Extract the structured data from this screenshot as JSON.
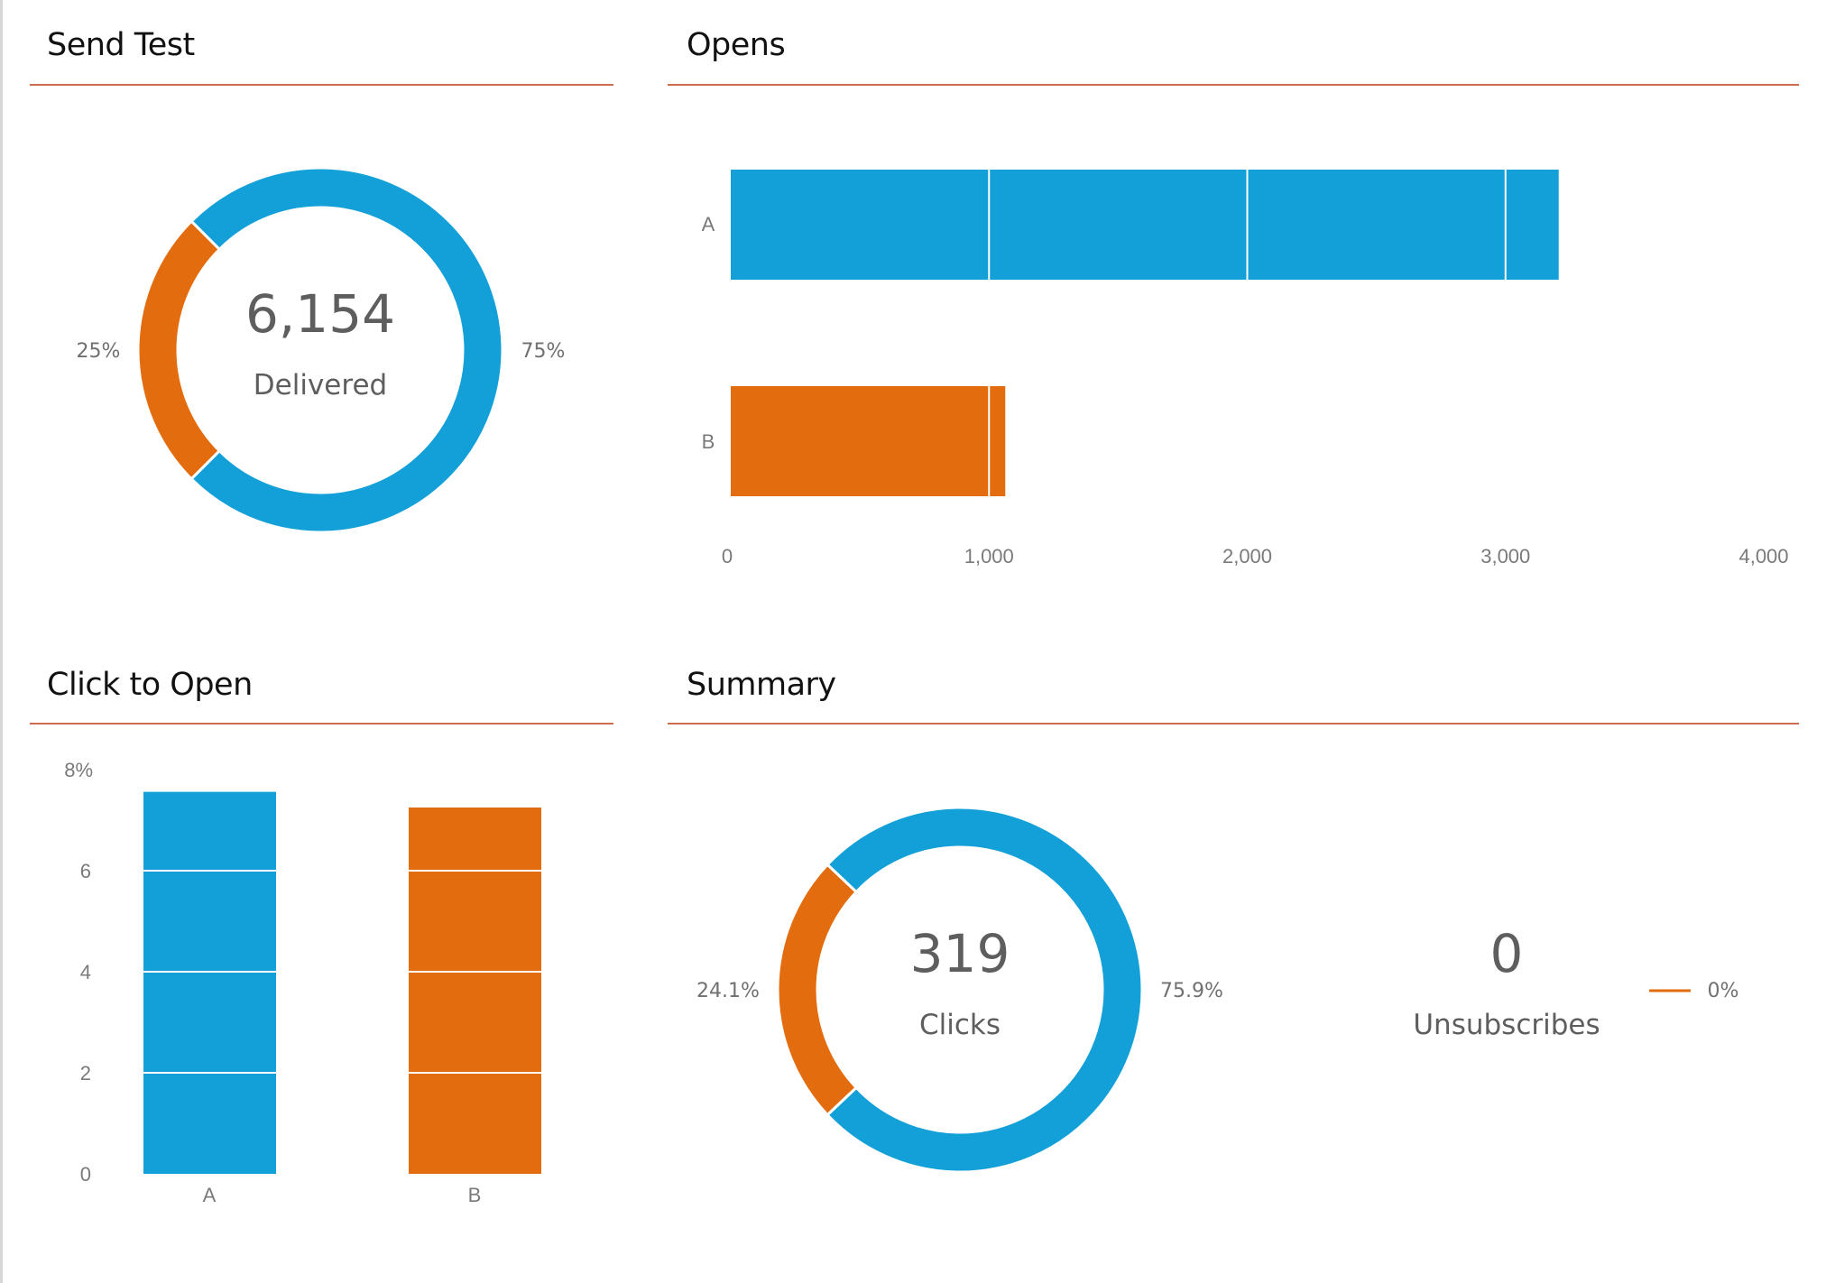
{
  "colors": {
    "series_a": "#139fd8",
    "series_b": "#e36c0e",
    "rule": "#cc6e4a",
    "text": "#5e5e5e",
    "tick": "#7a7a7a"
  },
  "panels": {
    "send_test": {
      "title": "Send Test"
    },
    "opens": {
      "title": "Opens"
    },
    "click_to_open": {
      "title": "Click to Open"
    },
    "summary": {
      "title": "Summary"
    }
  },
  "chart_data": [
    {
      "id": "send_test",
      "type": "pie",
      "title": "Send Test",
      "donut": true,
      "center_value": "6,154",
      "center_label": "Delivered",
      "slices": [
        {
          "name": "A",
          "value": 75,
          "label": "75%",
          "color": "#139fd8"
        },
        {
          "name": "B",
          "value": 25,
          "label": "25%",
          "color": "#e36c0e"
        }
      ]
    },
    {
      "id": "opens",
      "type": "bar",
      "orientation": "horizontal",
      "title": "Opens",
      "categories": [
        "A",
        "B"
      ],
      "values": [
        3206,
        1063
      ],
      "colors": [
        "#139fd8",
        "#e36c0e"
      ],
      "xlim": [
        0,
        4000
      ],
      "xticks": [
        0,
        1000,
        2000,
        3000,
        4000
      ],
      "xtick_labels": [
        "0",
        "1,000",
        "2,000",
        "3,000",
        "4,000"
      ],
      "grid": "white lines over bars"
    },
    {
      "id": "click_to_open",
      "type": "bar",
      "orientation": "vertical",
      "title": "Click to Open",
      "categories": [
        "A",
        "B"
      ],
      "values": [
        7.56,
        7.25
      ],
      "colors": [
        "#139fd8",
        "#e36c0e"
      ],
      "ylim": [
        0,
        8
      ],
      "yticks": [
        0,
        2,
        4,
        6,
        8
      ],
      "ytick_labels": [
        "0",
        "2",
        "4",
        "6",
        "8%"
      ],
      "ylabel": "%",
      "grid": "white lines over bars"
    },
    {
      "id": "summary_clicks",
      "type": "pie",
      "title": "Summary",
      "donut": true,
      "center_value": "319",
      "center_label": "Clicks",
      "slices": [
        {
          "name": "A",
          "value": 75.9,
          "label": "75.9%",
          "color": "#139fd8"
        },
        {
          "name": "B",
          "value": 24.1,
          "label": "24.1%",
          "color": "#e36c0e"
        }
      ]
    },
    {
      "id": "summary_unsubscribes",
      "type": "pie",
      "title": "Summary",
      "donut": false,
      "center_value": "0",
      "center_label": "Unsubscribes",
      "slices": [
        {
          "name": "B",
          "value": 0,
          "label": "0%",
          "color": "#e36c0e"
        }
      ]
    }
  ]
}
